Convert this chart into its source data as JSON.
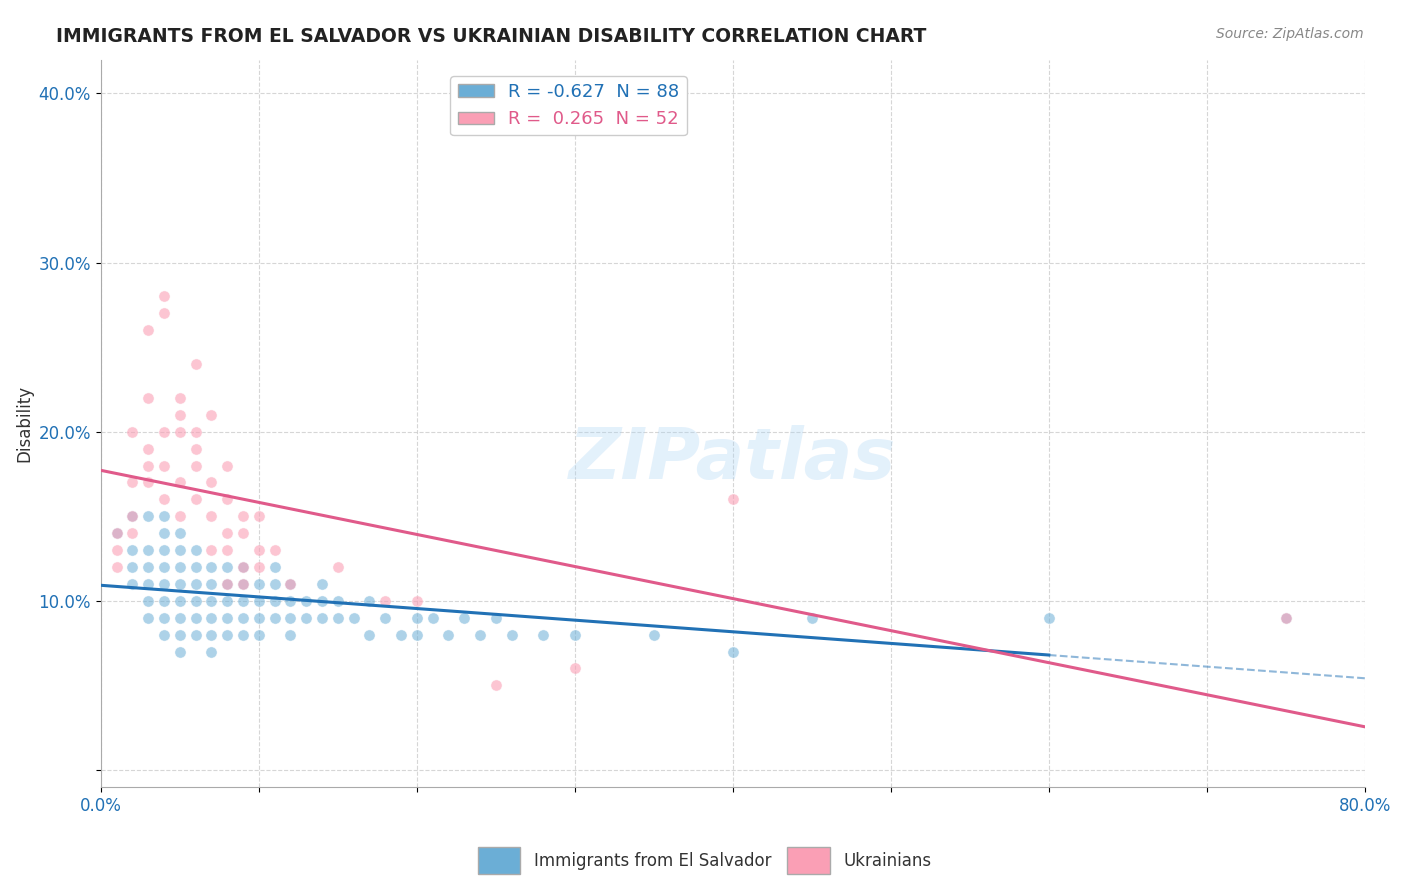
{
  "title": "IMMIGRANTS FROM EL SALVADOR VS UKRAINIAN DISABILITY CORRELATION CHART",
  "source": "Source: ZipAtlas.com",
  "ylabel": "Disability",
  "xlim": [
    0.0,
    0.8
  ],
  "ylim": [
    -0.01,
    0.42
  ],
  "blue_R": -0.627,
  "blue_N": 88,
  "pink_R": 0.265,
  "pink_N": 52,
  "blue_color": "#6baed6",
  "pink_color": "#fa9fb5",
  "blue_line_color": "#2171b5",
  "pink_line_color": "#e05a8a",
  "watermark": "ZIPatlas",
  "blue_scatter": [
    [
      0.01,
      0.14
    ],
    [
      0.02,
      0.13
    ],
    [
      0.02,
      0.12
    ],
    [
      0.02,
      0.11
    ],
    [
      0.03,
      0.13
    ],
    [
      0.03,
      0.12
    ],
    [
      0.03,
      0.11
    ],
    [
      0.03,
      0.1
    ],
    [
      0.03,
      0.09
    ],
    [
      0.04,
      0.14
    ],
    [
      0.04,
      0.13
    ],
    [
      0.04,
      0.12
    ],
    [
      0.04,
      0.11
    ],
    [
      0.04,
      0.1
    ],
    [
      0.04,
      0.09
    ],
    [
      0.04,
      0.08
    ],
    [
      0.05,
      0.14
    ],
    [
      0.05,
      0.13
    ],
    [
      0.05,
      0.12
    ],
    [
      0.05,
      0.11
    ],
    [
      0.05,
      0.1
    ],
    [
      0.05,
      0.09
    ],
    [
      0.05,
      0.08
    ],
    [
      0.05,
      0.07
    ],
    [
      0.06,
      0.13
    ],
    [
      0.06,
      0.12
    ],
    [
      0.06,
      0.11
    ],
    [
      0.06,
      0.1
    ],
    [
      0.06,
      0.09
    ],
    [
      0.06,
      0.08
    ],
    [
      0.07,
      0.12
    ],
    [
      0.07,
      0.11
    ],
    [
      0.07,
      0.1
    ],
    [
      0.07,
      0.09
    ],
    [
      0.07,
      0.08
    ],
    [
      0.07,
      0.07
    ],
    [
      0.08,
      0.12
    ],
    [
      0.08,
      0.11
    ],
    [
      0.08,
      0.1
    ],
    [
      0.08,
      0.09
    ],
    [
      0.08,
      0.08
    ],
    [
      0.09,
      0.12
    ],
    [
      0.09,
      0.11
    ],
    [
      0.09,
      0.1
    ],
    [
      0.09,
      0.09
    ],
    [
      0.09,
      0.08
    ],
    [
      0.1,
      0.11
    ],
    [
      0.1,
      0.1
    ],
    [
      0.1,
      0.09
    ],
    [
      0.1,
      0.08
    ],
    [
      0.11,
      0.12
    ],
    [
      0.11,
      0.11
    ],
    [
      0.11,
      0.1
    ],
    [
      0.11,
      0.09
    ],
    [
      0.12,
      0.11
    ],
    [
      0.12,
      0.1
    ],
    [
      0.12,
      0.09
    ],
    [
      0.12,
      0.08
    ],
    [
      0.13,
      0.1
    ],
    [
      0.13,
      0.09
    ],
    [
      0.14,
      0.11
    ],
    [
      0.14,
      0.1
    ],
    [
      0.14,
      0.09
    ],
    [
      0.15,
      0.1
    ],
    [
      0.15,
      0.09
    ],
    [
      0.16,
      0.09
    ],
    [
      0.17,
      0.1
    ],
    [
      0.17,
      0.08
    ],
    [
      0.18,
      0.09
    ],
    [
      0.19,
      0.08
    ],
    [
      0.2,
      0.09
    ],
    [
      0.2,
      0.08
    ],
    [
      0.21,
      0.09
    ],
    [
      0.22,
      0.08
    ],
    [
      0.23,
      0.09
    ],
    [
      0.24,
      0.08
    ],
    [
      0.25,
      0.09
    ],
    [
      0.26,
      0.08
    ],
    [
      0.28,
      0.08
    ],
    [
      0.3,
      0.08
    ],
    [
      0.35,
      0.08
    ],
    [
      0.4,
      0.07
    ],
    [
      0.45,
      0.09
    ],
    [
      0.6,
      0.09
    ],
    [
      0.75,
      0.09
    ],
    [
      0.02,
      0.15
    ],
    [
      0.03,
      0.15
    ],
    [
      0.04,
      0.15
    ]
  ],
  "pink_scatter": [
    [
      0.01,
      0.14
    ],
    [
      0.01,
      0.13
    ],
    [
      0.02,
      0.2
    ],
    [
      0.02,
      0.17
    ],
    [
      0.02,
      0.15
    ],
    [
      0.02,
      0.14
    ],
    [
      0.03,
      0.26
    ],
    [
      0.03,
      0.22
    ],
    [
      0.03,
      0.19
    ],
    [
      0.03,
      0.18
    ],
    [
      0.03,
      0.17
    ],
    [
      0.04,
      0.28
    ],
    [
      0.04,
      0.27
    ],
    [
      0.04,
      0.2
    ],
    [
      0.04,
      0.18
    ],
    [
      0.04,
      0.16
    ],
    [
      0.05,
      0.22
    ],
    [
      0.05,
      0.21
    ],
    [
      0.05,
      0.2
    ],
    [
      0.05,
      0.17
    ],
    [
      0.05,
      0.15
    ],
    [
      0.06,
      0.24
    ],
    [
      0.06,
      0.2
    ],
    [
      0.06,
      0.19
    ],
    [
      0.06,
      0.18
    ],
    [
      0.06,
      0.16
    ],
    [
      0.07,
      0.21
    ],
    [
      0.07,
      0.17
    ],
    [
      0.07,
      0.15
    ],
    [
      0.07,
      0.13
    ],
    [
      0.08,
      0.18
    ],
    [
      0.08,
      0.16
    ],
    [
      0.08,
      0.14
    ],
    [
      0.08,
      0.13
    ],
    [
      0.08,
      0.11
    ],
    [
      0.09,
      0.15
    ],
    [
      0.09,
      0.14
    ],
    [
      0.09,
      0.12
    ],
    [
      0.09,
      0.11
    ],
    [
      0.1,
      0.15
    ],
    [
      0.1,
      0.13
    ],
    [
      0.1,
      0.12
    ],
    [
      0.11,
      0.13
    ],
    [
      0.12,
      0.11
    ],
    [
      0.15,
      0.12
    ],
    [
      0.18,
      0.1
    ],
    [
      0.2,
      0.1
    ],
    [
      0.25,
      0.05
    ],
    [
      0.3,
      0.06
    ],
    [
      0.4,
      0.16
    ],
    [
      0.75,
      0.09
    ],
    [
      0.01,
      0.12
    ]
  ],
  "legend_bottom_labels": [
    "Immigrants from El Salvador",
    "Ukrainians"
  ]
}
